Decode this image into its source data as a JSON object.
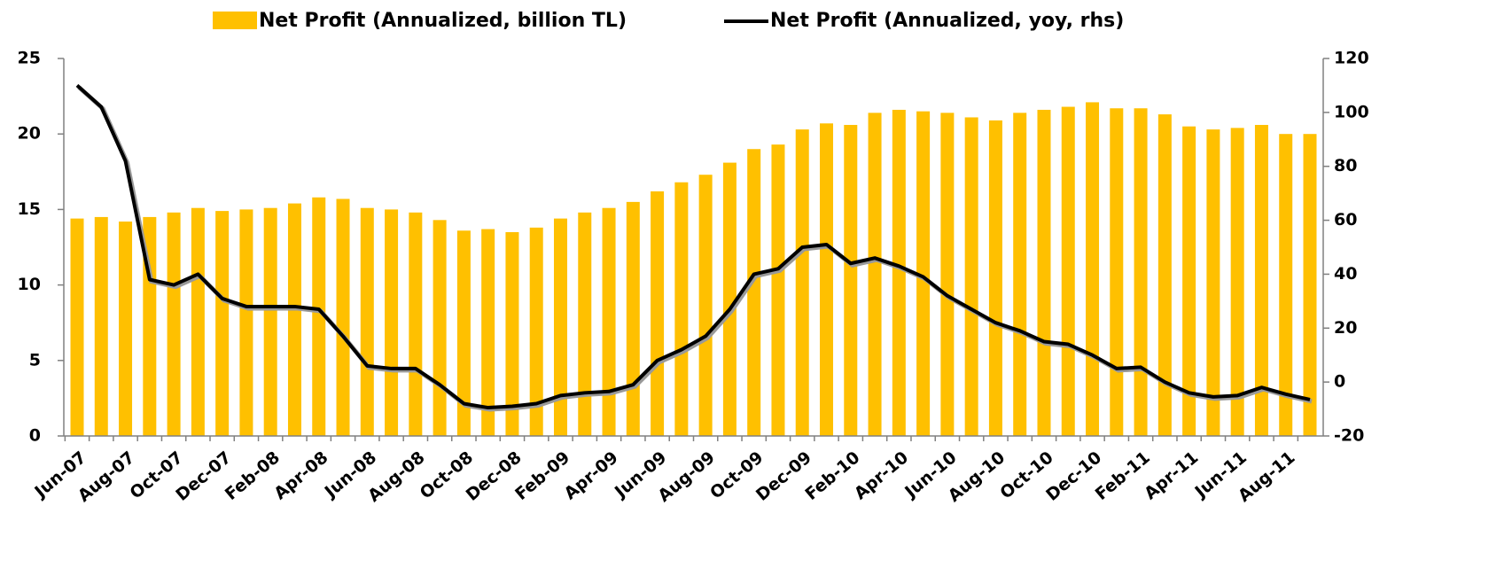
{
  "chart_data": {
    "type": "bar_line",
    "categories": [
      "Jun-07",
      null,
      "Aug-07",
      null,
      "Oct-07",
      null,
      "Dec-07",
      null,
      "Feb-08",
      null,
      "Apr-08",
      null,
      "Jun-08",
      null,
      "Aug-08",
      null,
      "Oct-08",
      null,
      "Dec-08",
      null,
      "Feb-09",
      null,
      "Apr-09",
      null,
      "Jun-09",
      null,
      "Aug-09",
      null,
      "Oct-09",
      null,
      "Dec-09",
      null,
      "Feb-10",
      null,
      "Apr-10",
      null,
      "Jun-10",
      null,
      "Aug-10",
      null,
      "Oct-10",
      null,
      "Dec-10",
      null,
      "Feb-11",
      null,
      "Apr-11",
      null,
      "Jun-11",
      null,
      "Aug-11",
      null
    ],
    "series": [
      {
        "name": "Net Profit (Annualized, billion TL)",
        "color": "#ffc000",
        "kind": "bar",
        "values": [
          14.4,
          14.5,
          14.2,
          14.5,
          14.8,
          15.1,
          14.9,
          15.0,
          15.1,
          15.4,
          15.8,
          15.7,
          15.1,
          15.0,
          14.8,
          14.3,
          13.6,
          13.7,
          13.5,
          13.8,
          14.4,
          14.8,
          15.1,
          15.5,
          16.2,
          16.8,
          17.3,
          18.1,
          19.0,
          19.3,
          20.3,
          20.7,
          20.6,
          21.4,
          21.6,
          21.5,
          21.4,
          21.1,
          20.9,
          21.4,
          21.6,
          21.8,
          22.1,
          21.7,
          21.7,
          21.3,
          20.5,
          20.3,
          20.4,
          20.6,
          20.0,
          20.0
        ]
      },
      {
        "name": "Net Profit (Annualized, yoy, rhs)",
        "color": "#000000",
        "kind": "line",
        "axis": "y2",
        "values": [
          110,
          102,
          82,
          38,
          36,
          40,
          31,
          28,
          28,
          28,
          27,
          17,
          6,
          5,
          5,
          -1,
          -8,
          -9.5,
          -9,
          -8,
          -5,
          -4,
          -3.5,
          -1,
          8,
          12,
          17,
          27,
          40,
          42,
          50,
          51,
          44,
          46,
          43,
          39,
          32,
          27,
          22,
          19,
          15,
          14,
          10,
          5,
          5.5,
          0,
          -4,
          -5.5,
          -5,
          -2,
          -4.5,
          -6.5
        ]
      }
    ],
    "ylim": [
      0,
      25
    ],
    "yticks": [
      0,
      5,
      10,
      15,
      20,
      25
    ],
    "y2lim": [
      -20,
      120
    ],
    "y2ticks": [
      -20,
      0,
      20,
      40,
      60,
      80,
      100,
      120
    ],
    "legend": "top"
  }
}
